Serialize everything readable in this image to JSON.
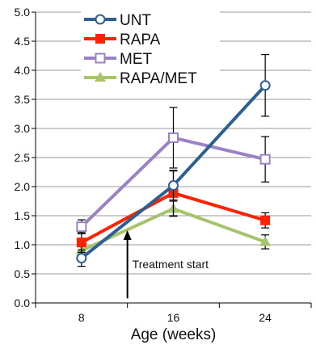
{
  "chart_data": {
    "type": "line",
    "title": "",
    "xlabel": "Age (weeks)",
    "ylabel": "",
    "x": [
      8,
      16,
      24
    ],
    "xtick_labels": [
      "8",
      "16",
      "24"
    ],
    "ylim": [
      0.0,
      5.0
    ],
    "yticks": [
      0.0,
      0.5,
      1.0,
      1.5,
      2.0,
      2.5,
      3.0,
      3.5,
      4.0,
      4.5,
      5.0
    ],
    "ytick_labels": [
      "0.0",
      "0.5",
      "1.0",
      "1.5",
      "2.0",
      "2.5",
      "3.0",
      "3.5",
      "4.0",
      "4.5",
      "5.0"
    ],
    "grid": "horizontal",
    "legend_position": "top-left",
    "series": [
      {
        "name": "UNT",
        "color": "#2e5f93",
        "marker": "open-circle",
        "values": [
          0.77,
          2.02,
          3.74
        ],
        "errors": [
          0.14,
          0.25,
          0.53
        ]
      },
      {
        "name": "RAPA",
        "color": "#ff2200",
        "marker": "filled-square",
        "values": [
          1.04,
          1.89,
          1.42
        ],
        "errors": [
          0.17,
          0.39,
          0.13
        ]
      },
      {
        "name": "MET",
        "color": "#9a82c4",
        "marker": "open-square",
        "values": [
          1.31,
          2.84,
          2.47
        ],
        "errors": [
          0.12,
          0.52,
          0.39
        ]
      },
      {
        "name": "RAPA/MET",
        "color": "#a6c56b",
        "marker": "filled-triangle",
        "values": [
          0.9,
          1.62,
          1.05
        ],
        "errors": [
          0.1,
          0.13,
          0.12
        ]
      }
    ],
    "annotation": {
      "text": "Treatment start",
      "x": 12,
      "arrow_tip_y": 1.25,
      "arrow_tail_y": 0.08
    }
  }
}
